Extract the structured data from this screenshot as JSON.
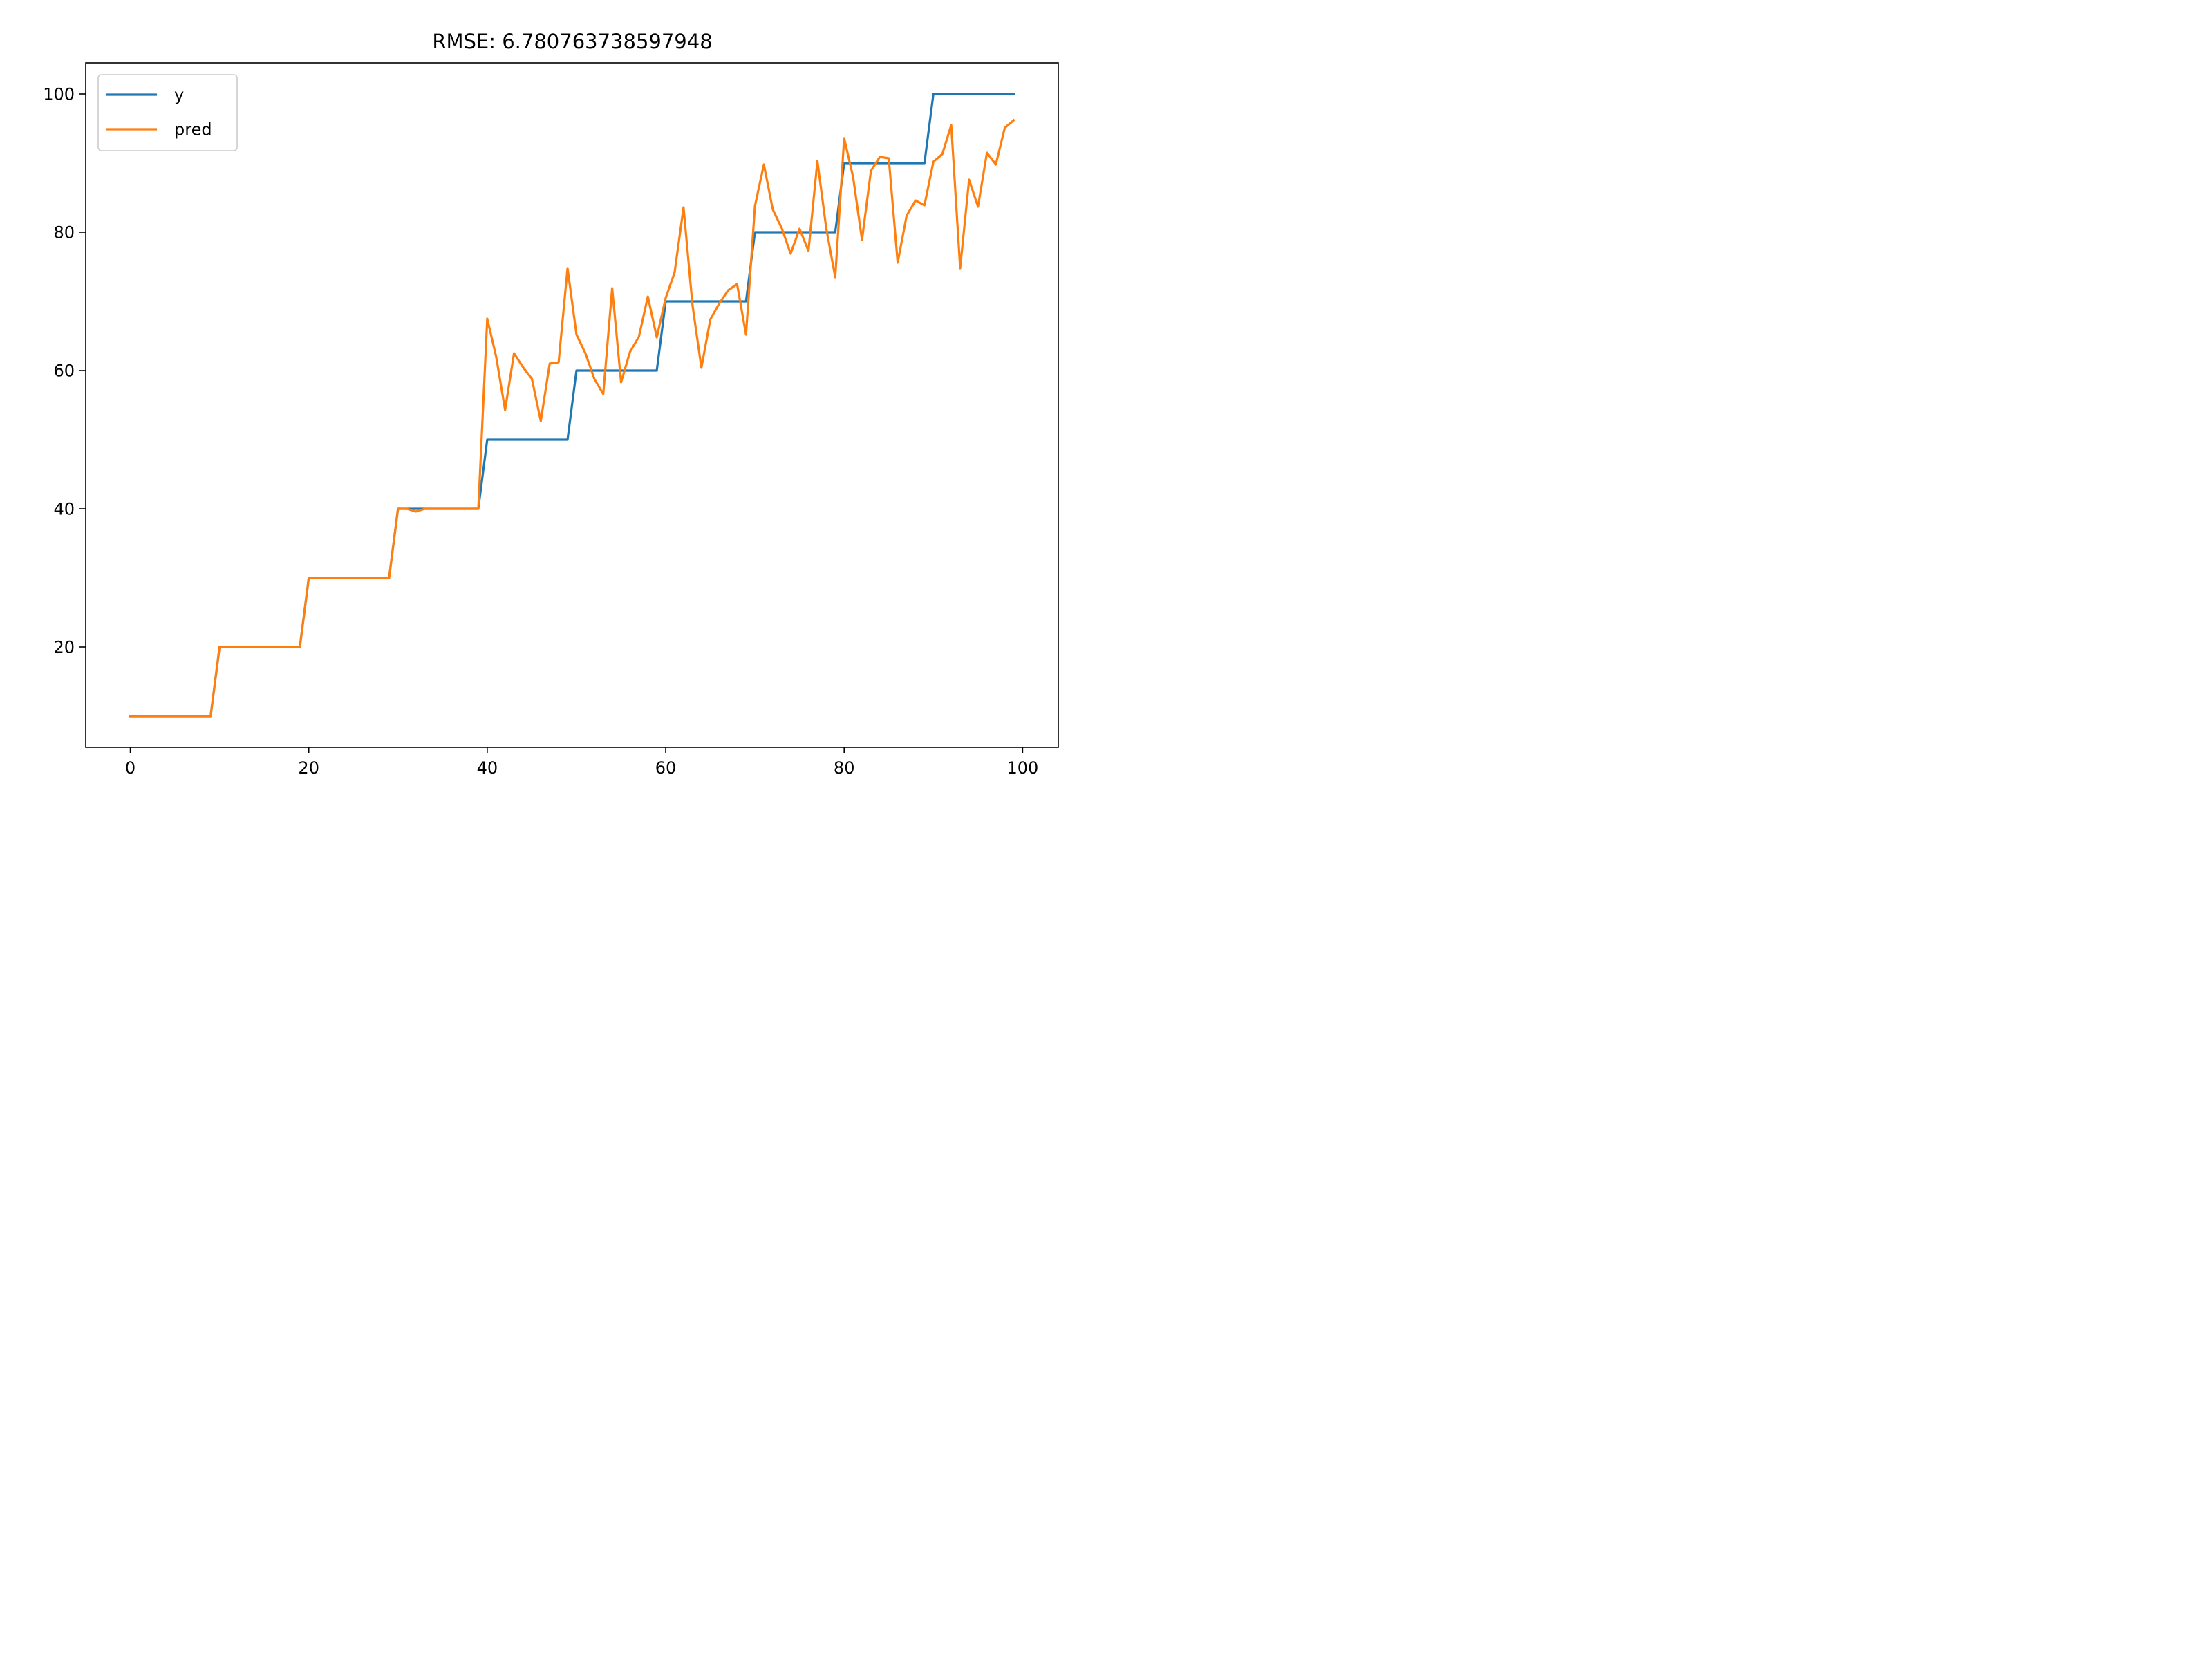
{
  "chart_data": {
    "type": "line",
    "title": "RMSE: 6.780763738597948",
    "xlabel": "",
    "ylabel": "",
    "xlim": [
      -5,
      104
    ],
    "ylim": [
      5.5,
      104.5
    ],
    "xticks": [
      0,
      20,
      40,
      60,
      80,
      100
    ],
    "yticks": [
      20,
      40,
      60,
      80,
      100
    ],
    "legend": {
      "position": "upper-left"
    },
    "grid": false,
    "series": [
      {
        "name": "y",
        "color": "#1f77b4",
        "x": [
          0,
          1,
          2,
          3,
          4,
          5,
          6,
          7,
          8,
          9,
          10,
          11,
          12,
          13,
          14,
          15,
          16,
          17,
          18,
          19,
          20,
          21,
          22,
          23,
          24,
          25,
          26,
          27,
          28,
          29,
          30,
          31,
          32,
          33,
          34,
          35,
          36,
          37,
          38,
          39,
          40,
          41,
          42,
          43,
          44,
          45,
          46,
          47,
          48,
          49,
          50,
          51,
          52,
          53,
          54,
          55,
          56,
          57,
          58,
          59,
          60,
          61,
          62,
          63,
          64,
          65,
          66,
          67,
          68,
          69,
          70,
          71,
          72,
          73,
          74,
          75,
          76,
          77,
          78,
          79,
          80,
          81,
          82,
          83,
          84,
          85,
          86,
          87,
          88,
          89,
          90,
          91,
          92,
          93,
          94,
          95,
          96,
          97,
          98,
          99
        ],
        "y": [
          10,
          10,
          10,
          10,
          10,
          10,
          10,
          10,
          10,
          10,
          20,
          20,
          20,
          20,
          20,
          20,
          20,
          20,
          20,
          20,
          30,
          30,
          30,
          30,
          30,
          30,
          30,
          30,
          30,
          30,
          40,
          40,
          40,
          40,
          40,
          40,
          40,
          40,
          40,
          40,
          50,
          50,
          50,
          50,
          50,
          50,
          50,
          50,
          50,
          50,
          60,
          60,
          60,
          60,
          60,
          60,
          60,
          60,
          60,
          60,
          70,
          70,
          70,
          70,
          70,
          70,
          70,
          70,
          70,
          70,
          80,
          80,
          80,
          80,
          80,
          80,
          80,
          80,
          80,
          80,
          90,
          90,
          90,
          90,
          90,
          90,
          90,
          90,
          90,
          90,
          100,
          100,
          100,
          100,
          100,
          100,
          100,
          100,
          100,
          100
        ]
      },
      {
        "name": "pred",
        "color": "#ff7f0e",
        "x": [
          0,
          1,
          2,
          3,
          4,
          5,
          6,
          7,
          8,
          9,
          10,
          11,
          12,
          13,
          14,
          15,
          16,
          17,
          18,
          19,
          20,
          21,
          22,
          23,
          24,
          25,
          26,
          27,
          28,
          29,
          30,
          31,
          32,
          33,
          34,
          35,
          36,
          37,
          38,
          39,
          40,
          41,
          42,
          43,
          44,
          45,
          46,
          47,
          48,
          49,
          50,
          51,
          52,
          53,
          54,
          55,
          56,
          57,
          58,
          59,
          60,
          61,
          62,
          63,
          64,
          65,
          66,
          67,
          68,
          69,
          70,
          71,
          72,
          73,
          74,
          75,
          76,
          77,
          78,
          79,
          80,
          81,
          82,
          83,
          84,
          85,
          86,
          87,
          88,
          89,
          90,
          91,
          92,
          93,
          94,
          95,
          96,
          97,
          98,
          99
        ],
        "y": [
          10,
          10,
          10,
          10,
          10,
          10,
          10,
          10,
          10,
          10,
          20,
          20,
          20,
          20,
          20,
          20,
          20,
          20,
          20,
          20,
          30,
          30,
          30,
          30,
          30,
          30,
          30,
          30,
          30,
          30,
          40,
          40,
          39.6,
          40,
          40,
          40,
          40,
          40,
          40,
          40,
          67.5,
          62,
          54.3,
          62.5,
          60.5,
          58.8,
          52.7,
          61,
          61.2,
          74.8,
          65.2,
          62.5,
          58.8,
          56.6,
          71.9,
          58.3,
          62.7,
          64.9,
          70.7,
          64.8,
          70.5,
          74.2,
          83.6,
          69.5,
          60.4,
          67.4,
          69.7,
          71.6,
          72.5,
          65.2,
          83.8,
          89.8,
          83.3,
          80.6,
          76.9,
          80.5,
          77.3,
          90.3,
          80.5,
          73.5,
          93.6,
          88,
          78.9,
          88.9,
          90.9,
          90.7,
          75.6,
          82.4,
          84.6,
          83.9,
          90.2,
          91.3,
          95.5,
          74.8,
          87.6,
          83.7,
          91.5,
          89.8,
          95.1,
          96.2
        ]
      }
    ]
  }
}
